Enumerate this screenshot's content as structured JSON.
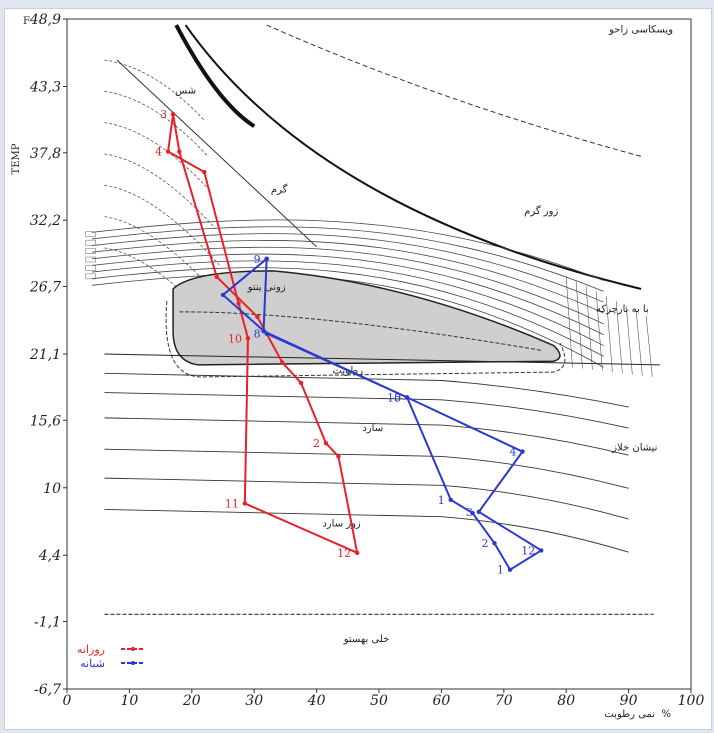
{
  "chart_data": {
    "type": "line",
    "ylabel": "TEMP",
    "xlabel": "%",
    "x_axis_caption": "نمی رطوبت",
    "xlim": [
      0,
      100
    ],
    "ylim": [
      -6.7,
      48.9
    ],
    "x_ticks": [
      "0",
      "10",
      "20",
      "30",
      "40",
      "50",
      "60",
      "70",
      "80",
      "90",
      "100"
    ],
    "y_ticks": [
      {
        "v": 48.9,
        "t": "48,9"
      },
      {
        "v": 43.3,
        "t": "43,3"
      },
      {
        "v": 37.8,
        "t": "37,8"
      },
      {
        "v": 32.2,
        "t": "32,2"
      },
      {
        "v": 26.7,
        "t": "26,7"
      },
      {
        "v": 21.1,
        "t": "21,1"
      },
      {
        "v": 15.6,
        "t": "15,6"
      },
      {
        "v": 10,
        "t": "10"
      },
      {
        "v": 4.4,
        "t": "4,4"
      },
      {
        "v": -1.1,
        "t": "-1,1"
      },
      {
        "v": -6.7,
        "t": "-6,7"
      }
    ],
    "y_unit": "F",
    "zone_labels": [
      {
        "text": "ویسکاسی زاحو",
        "x": 92,
        "y": 47.8
      },
      {
        "text": "زور گرم",
        "x": 76,
        "y": 32.7
      },
      {
        "text": "گرم",
        "x": 34,
        "y": 34.5
      },
      {
        "text": "زونی ینتو",
        "x": 32,
        "y": 26.4
      },
      {
        "text": "با به بارچرکه",
        "x": 89,
        "y": 24.6
      },
      {
        "text": "سارد",
        "x": 49,
        "y": 14.7
      },
      {
        "text": "نیشان خلاز",
        "x": 91,
        "y": 13.1
      },
      {
        "text": "زور سارد",
        "x": 44,
        "y": 6.8
      },
      {
        "text": "خلی بهستو",
        "x": 48,
        "y": -2.8
      },
      {
        "text": "شس",
        "x": 19,
        "y": 42.7
      },
      {
        "text": "رطوبت",
        "x": 45,
        "y": 19.5
      }
    ],
    "series": [
      {
        "name": "روزانه",
        "color": "#e8202a",
        "points": [
          {
            "x": 17.0,
            "y": 41.0,
            "label": "3"
          },
          {
            "x": 16.2,
            "y": 37.9,
            "label": "4"
          },
          {
            "x": 22.0,
            "y": 36.2,
            "label": ""
          },
          {
            "x": 27.5,
            "y": 25.3,
            "label": ""
          },
          {
            "x": 29.0,
            "y": 22.4,
            "label": "10"
          },
          {
            "x": 28.5,
            "y": 8.7,
            "label": "11"
          },
          {
            "x": 46.5,
            "y": 4.6,
            "label": "12"
          },
          {
            "x": 43.5,
            "y": 12.6,
            "label": ""
          },
          {
            "x": 41.5,
            "y": 13.7,
            "label": "2"
          },
          {
            "x": 37.5,
            "y": 18.7,
            "label": ""
          },
          {
            "x": 34.5,
            "y": 20.4,
            "label": ""
          },
          {
            "x": 30.5,
            "y": 24.2,
            "label": ""
          },
          {
            "x": 24.0,
            "y": 27.5,
            "label": ""
          },
          {
            "x": 18.0,
            "y": 37.9,
            "label": ""
          },
          {
            "x": 17.0,
            "y": 41.0,
            "label": ""
          }
        ]
      },
      {
        "name": "شبانه",
        "color": "#2a3ad0",
        "points": [
          {
            "x": 32.0,
            "y": 29.0,
            "label": "9"
          },
          {
            "x": 25.0,
            "y": 26.0,
            "label": ""
          },
          {
            "x": 32.0,
            "y": 22.8,
            "label": "8"
          },
          {
            "x": 54.5,
            "y": 17.5,
            "label": "5"
          },
          {
            "x": 73.0,
            "y": 13.0,
            "label": "4"
          },
          {
            "x": 66.0,
            "y": 8.0,
            "label": "3"
          },
          {
            "x": 76.0,
            "y": 4.8,
            "label": "12"
          },
          {
            "x": 71.0,
            "y": 3.2,
            "label": "1"
          },
          {
            "x": 68.5,
            "y": 5.4,
            "label": "2"
          },
          {
            "x": 65.0,
            "y": 7.9,
            "label": ""
          },
          {
            "x": 61.5,
            "y": 9.0,
            "label": "1"
          },
          {
            "x": 54.5,
            "y": 17.5,
            "label": "10"
          },
          {
            "x": 31.5,
            "y": 23.0,
            "label": ""
          },
          {
            "x": 32.0,
            "y": 29.0,
            "label": ""
          }
        ]
      }
    ]
  },
  "legend": {
    "day": "روزانه",
    "night": "شبانه"
  },
  "colors": {
    "day": "#e8202a",
    "night": "#2a3ad0",
    "shade": "#cfcfcf",
    "ink": "#222222"
  }
}
